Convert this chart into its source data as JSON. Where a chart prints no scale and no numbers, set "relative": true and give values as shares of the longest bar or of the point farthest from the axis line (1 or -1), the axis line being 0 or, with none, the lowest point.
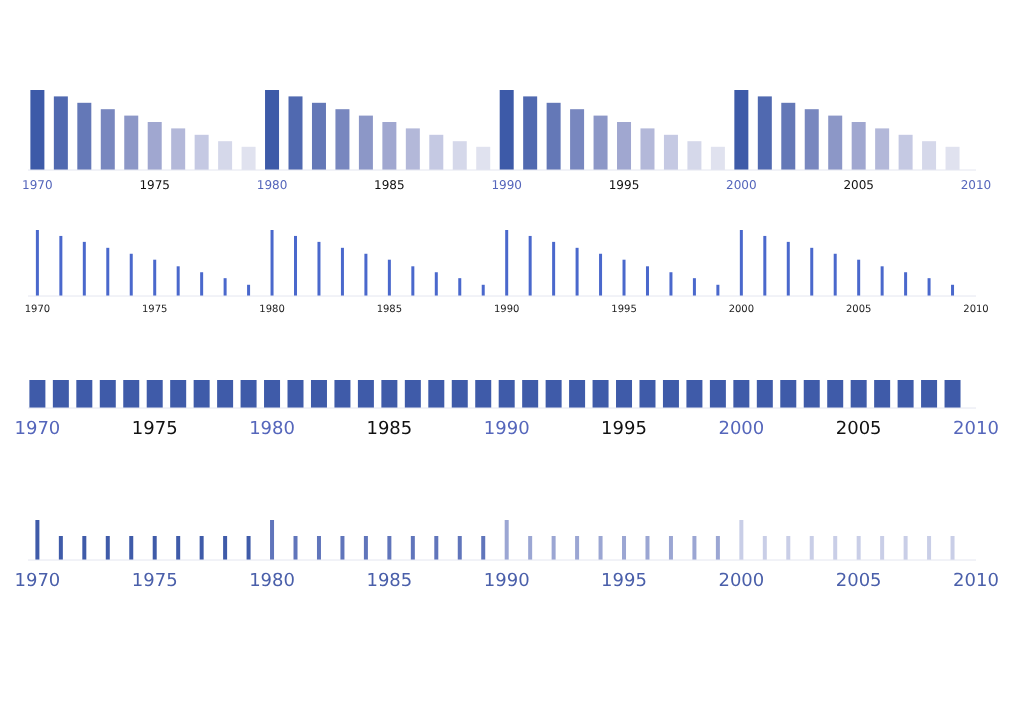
{
  "chart_data": [
    {
      "type": "bar",
      "relative": true,
      "x": [
        1970,
        1971,
        1972,
        1973,
        1974,
        1975,
        1976,
        1977,
        1978,
        1979,
        1980,
        1981,
        1982,
        1983,
        1984,
        1985,
        1986,
        1987,
        1988,
        1989,
        1990,
        1991,
        1992,
        1993,
        1994,
        1995,
        1996,
        1997,
        1998,
        1999,
        2000,
        2001,
        2002,
        2003,
        2004,
        2005,
        2006,
        2007,
        2008,
        2009
      ],
      "values": [
        1,
        0.92,
        0.84,
        0.76,
        0.68,
        0.6,
        0.52,
        0.44,
        0.36,
        0.29,
        1,
        0.92,
        0.84,
        0.76,
        0.68,
        0.6,
        0.52,
        0.44,
        0.36,
        0.29,
        1,
        0.92,
        0.84,
        0.76,
        0.68,
        0.6,
        0.52,
        0.44,
        0.36,
        0.29,
        1,
        0.92,
        0.84,
        0.76,
        0.68,
        0.6,
        0.52,
        0.44,
        0.36,
        0.29
      ],
      "colors": [
        "#3d5aa8",
        "#5069b0",
        "#6478b7",
        "#7887bf",
        "#8c97c7",
        "#a0a7d0",
        "#b3b8d9",
        "#c5c9e3",
        "#d5d8ea",
        "#e0e2ef",
        "#3d5aa8",
        "#5069b0",
        "#6478b7",
        "#7887bf",
        "#8c97c7",
        "#a0a7d0",
        "#b3b8d9",
        "#c5c9e3",
        "#d5d8ea",
        "#e0e2ef",
        "#3d5aa8",
        "#5069b0",
        "#6478b7",
        "#7887bf",
        "#8c97c7",
        "#a0a7d0",
        "#b3b8d9",
        "#c5c9e3",
        "#d5d8ea",
        "#e0e2ef",
        "#3d5aa8",
        "#5069b0",
        "#6478b7",
        "#7887bf",
        "#8c97c7",
        "#a0a7d0",
        "#b3b8d9",
        "#c5c9e3",
        "#d5d8ea",
        "#e0e2ef"
      ],
      "xlim": [
        1969.6,
        2010
      ],
      "xticks": [
        1970,
        1975,
        1980,
        1985,
        1990,
        1995,
        2000,
        2005,
        2010
      ]
    },
    {
      "type": "bar",
      "relative": true,
      "x": [
        1970,
        1971,
        1972,
        1973,
        1974,
        1975,
        1976,
        1977,
        1978,
        1979,
        1980,
        1981,
        1982,
        1983,
        1984,
        1985,
        1986,
        1987,
        1988,
        1989,
        1990,
        1991,
        1992,
        1993,
        1994,
        1995,
        1996,
        1997,
        1998,
        1999,
        2000,
        2001,
        2002,
        2003,
        2004,
        2005,
        2006,
        2007,
        2008,
        2009
      ],
      "values": [
        1,
        0.91,
        0.82,
        0.73,
        0.64,
        0.55,
        0.45,
        0.36,
        0.27,
        0.17,
        1,
        0.91,
        0.82,
        0.73,
        0.64,
        0.55,
        0.45,
        0.36,
        0.27,
        0.17,
        1,
        0.91,
        0.82,
        0.73,
        0.64,
        0.55,
        0.45,
        0.36,
        0.27,
        0.17,
        1,
        0.91,
        0.82,
        0.73,
        0.64,
        0.55,
        0.45,
        0.36,
        0.27,
        0.17
      ],
      "color": "#4a68cc",
      "xlim": [
        1969.6,
        2010
      ],
      "xticks": [
        1970,
        1975,
        1980,
        1985,
        1990,
        1995,
        2000,
        2005,
        2010
      ]
    },
    {
      "type": "bar",
      "relative": true,
      "x": [
        1970,
        1971,
        1972,
        1973,
        1974,
        1975,
        1976,
        1977,
        1978,
        1979,
        1980,
        1981,
        1982,
        1983,
        1984,
        1985,
        1986,
        1987,
        1988,
        1989,
        1990,
        1991,
        1992,
        1993,
        1994,
        1995,
        1996,
        1997,
        1998,
        1999,
        2000,
        2001,
        2002,
        2003,
        2004,
        2005,
        2006,
        2007,
        2008,
        2009
      ],
      "values": [
        1,
        1,
        1,
        1,
        1,
        1,
        1,
        1,
        1,
        1,
        1,
        1,
        1,
        1,
        1,
        1,
        1,
        1,
        1,
        1,
        1,
        1,
        1,
        1,
        1,
        1,
        1,
        1,
        1,
        1,
        1,
        1,
        1,
        1,
        1,
        1,
        1,
        1,
        1,
        1
      ],
      "color": "#3f5ba9",
      "xlim": [
        1969.6,
        2010
      ],
      "xticks": [
        1970,
        1975,
        1980,
        1985,
        1990,
        1995,
        2000,
        2005,
        2010
      ]
    },
    {
      "type": "bar",
      "relative": true,
      "x": [
        1970,
        1971,
        1972,
        1973,
        1974,
        1975,
        1976,
        1977,
        1978,
        1979,
        1980,
        1981,
        1982,
        1983,
        1984,
        1985,
        1986,
        1987,
        1988,
        1989,
        1990,
        1991,
        1992,
        1993,
        1994,
        1995,
        1996,
        1997,
        1998,
        1999,
        2000,
        2001,
        2002,
        2003,
        2004,
        2005,
        2006,
        2007,
        2008,
        2009
      ],
      "values": [
        1,
        0.6,
        0.6,
        0.6,
        0.6,
        0.6,
        0.6,
        0.6,
        0.6,
        0.6,
        1,
        0.6,
        0.6,
        0.6,
        0.6,
        0.6,
        0.6,
        0.6,
        0.6,
        0.6,
        1,
        0.6,
        0.6,
        0.6,
        0.6,
        0.6,
        0.6,
        0.6,
        0.6,
        0.6,
        1,
        0.6,
        0.6,
        0.6,
        0.6,
        0.6,
        0.6,
        0.6,
        0.6,
        0.6
      ],
      "colors": [
        "#3f5ba9",
        "#3f5ba9",
        "#3f5ba9",
        "#3f5ba9",
        "#3f5ba9",
        "#3f5ba9",
        "#3f5ba9",
        "#3f5ba9",
        "#3f5ba9",
        "#3f5ba9",
        "#6075bb",
        "#6075bb",
        "#6075bb",
        "#6075bb",
        "#6075bb",
        "#6075bb",
        "#6075bb",
        "#6075bb",
        "#6075bb",
        "#6075bb",
        "#9ba6d3",
        "#9ba6d3",
        "#9ba6d3",
        "#9ba6d3",
        "#9ba6d3",
        "#9ba6d3",
        "#9ba6d3",
        "#9ba6d3",
        "#9ba6d3",
        "#9ba6d3",
        "#c9cee7",
        "#c9cee7",
        "#c9cee7",
        "#c9cee7",
        "#c9cee7",
        "#c9cee7",
        "#c9cee7",
        "#c9cee7",
        "#c9cee7",
        "#c9cee7"
      ],
      "xlim": [
        1969.6,
        2010
      ],
      "xticks": [
        1970,
        1975,
        1980,
        1985,
        1990,
        1995,
        2000,
        2005,
        2010
      ]
    }
  ]
}
